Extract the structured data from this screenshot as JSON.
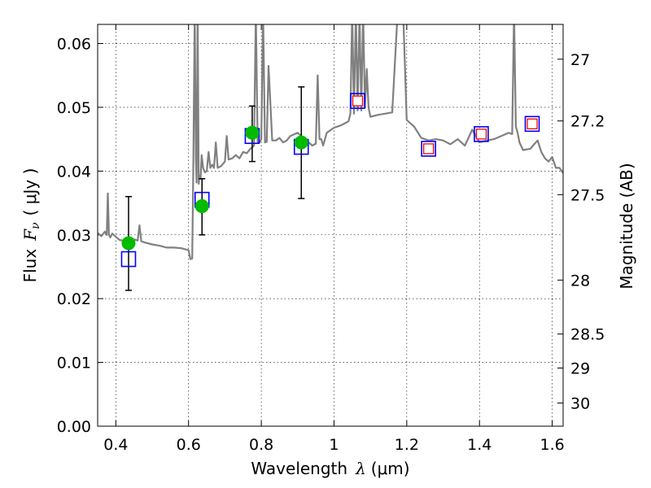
{
  "chart_data": {
    "type": "scatter",
    "xlabel": "Wavelength",
    "xlabel_symbol": "λ",
    "xlabel_unit": "(μm)",
    "ylabel": "Flux",
    "ylabel_symbol": "F",
    "ylabel_sub": "ν",
    "ylabel_unit": "( μJy )",
    "y2label": "Magnitude (AB)",
    "xlim": [
      0.35,
      1.63
    ],
    "ylim": [
      0.0,
      0.063
    ],
    "grid": true,
    "x_ticks": [
      0.4,
      0.6,
      0.8,
      1.0,
      1.2,
      1.4,
      1.6
    ],
    "x_tick_labels": [
      "0.4",
      "0.6",
      "0.8",
      "1",
      "1.2",
      "1.4",
      "1.6"
    ],
    "y_ticks": [
      0.0,
      0.01,
      0.02,
      0.03,
      0.04,
      0.05,
      0.06
    ],
    "y_tick_labels": [
      "0.00",
      "0.01",
      "0.02",
      "0.03",
      "0.04",
      "0.05",
      "0.06"
    ],
    "y2_ticks": [
      27,
      27.2,
      27.5,
      28,
      28.5,
      29,
      30
    ],
    "y2_tick_labels": [
      "27",
      "27.2",
      "27.5",
      "28",
      "28.5",
      "29",
      "30"
    ],
    "colors": {
      "model": "#808080",
      "observed": "#00bb00",
      "model_box": "#0000ff",
      "predicted": "#ff0000",
      "errorbar": "#000000"
    },
    "model_spectrum": {
      "name": "",
      "color": "#808080",
      "x": [
        0.35,
        0.36,
        0.37,
        0.375,
        0.378,
        0.381,
        0.385,
        0.39,
        0.4,
        0.41,
        0.42,
        0.43,
        0.44,
        0.45,
        0.46,
        0.465,
        0.47,
        0.48,
        0.5,
        0.52,
        0.54,
        0.56,
        0.58,
        0.6,
        0.605,
        0.61,
        0.613,
        0.617,
        0.62,
        0.622,
        0.625,
        0.628,
        0.63,
        0.633,
        0.636,
        0.64,
        0.645,
        0.65,
        0.655,
        0.66,
        0.665,
        0.67,
        0.675,
        0.68,
        0.69,
        0.7,
        0.705,
        0.71,
        0.72,
        0.73,
        0.74,
        0.75,
        0.76,
        0.77,
        0.78,
        0.785,
        0.79,
        0.795,
        0.8,
        0.805,
        0.81,
        0.815,
        0.82,
        0.83,
        0.84,
        0.85,
        0.86,
        0.87,
        0.88,
        0.9,
        0.92,
        0.94,
        0.95,
        0.955,
        0.96,
        0.965,
        0.97,
        0.98,
        1.0,
        1.02,
        1.04,
        1.045,
        1.05,
        1.055,
        1.06,
        1.065,
        1.07,
        1.075,
        1.08,
        1.085,
        1.09,
        1.095,
        1.1,
        1.12,
        1.14,
        1.16,
        1.175,
        1.18,
        1.185,
        1.19,
        1.2,
        1.22,
        1.24,
        1.26,
        1.28,
        1.3,
        1.32,
        1.34,
        1.36,
        1.38,
        1.4,
        1.42,
        1.44,
        1.46,
        1.48,
        1.49,
        1.495,
        1.5,
        1.505,
        1.51,
        1.52,
        1.54,
        1.55,
        1.56,
        1.57,
        1.58,
        1.59,
        1.6,
        1.61,
        1.62,
        1.63
      ],
      "y": [
        0.0303,
        0.0298,
        0.0305,
        0.03,
        0.0365,
        0.03,
        0.0296,
        0.0302,
        0.0297,
        0.0292,
        0.0291,
        0.0294,
        0.0286,
        0.0293,
        0.0291,
        0.0315,
        0.029,
        0.0288,
        0.0285,
        0.0283,
        0.028,
        0.028,
        0.0279,
        0.0276,
        0.0262,
        0.0263,
        0.04,
        0.065,
        0.042,
        0.0382,
        0.065,
        0.038,
        0.0393,
        0.0388,
        0.0425,
        0.0405,
        0.0398,
        0.04,
        0.043,
        0.0405,
        0.041,
        0.0405,
        0.0445,
        0.0405,
        0.0408,
        0.0415,
        0.0455,
        0.0418,
        0.042,
        0.0425,
        0.042,
        0.043,
        0.0428,
        0.0435,
        0.044,
        0.065,
        0.0445,
        0.0445,
        0.045,
        0.065,
        0.0445,
        0.0446,
        0.0565,
        0.0448,
        0.0448,
        0.0452,
        0.0445,
        0.0448,
        0.0455,
        0.046,
        0.045,
        0.044,
        0.0443,
        0.055,
        0.045,
        0.045,
        0.044,
        0.046,
        0.0468,
        0.0472,
        0.0478,
        0.049,
        0.065,
        0.049,
        0.065,
        0.0495,
        0.065,
        0.0495,
        0.065,
        0.05,
        0.056,
        0.05,
        0.0485,
        0.0488,
        0.049,
        0.0492,
        0.065,
        0.065,
        0.065,
        0.065,
        0.048,
        0.047,
        0.0452,
        0.0448,
        0.045,
        0.0448,
        0.0442,
        0.045,
        0.044,
        0.0465,
        0.0445,
        0.0448,
        0.045,
        0.0455,
        0.046,
        0.0458,
        0.065,
        0.047,
        0.046,
        0.0445,
        0.0433,
        0.0435,
        0.0442,
        0.0448,
        0.043,
        0.042,
        0.0415,
        0.0422,
        0.0405,
        0.0405,
        0.0397
      ]
    },
    "observed": {
      "x": [
        0.435,
        0.637,
        0.775,
        0.91
      ],
      "y": [
        0.0287,
        0.0345,
        0.046,
        0.0445
      ],
      "yerr_low": [
        0.0213,
        0.03,
        0.0415,
        0.0357
      ],
      "yerr_high": [
        0.036,
        0.0388,
        0.0502,
        0.0532
      ]
    },
    "model_boxes": {
      "x": [
        0.435,
        0.637,
        0.775,
        0.91,
        1.065,
        1.26,
        1.405,
        1.545
      ],
      "y": [
        0.0262,
        0.0355,
        0.0455,
        0.0438,
        0.051,
        0.0435,
        0.0458,
        0.0474
      ]
    },
    "predicted": {
      "x": [
        1.065,
        1.26,
        1.405,
        1.545
      ],
      "y": [
        0.051,
        0.0435,
        0.0458,
        0.0474
      ]
    }
  }
}
